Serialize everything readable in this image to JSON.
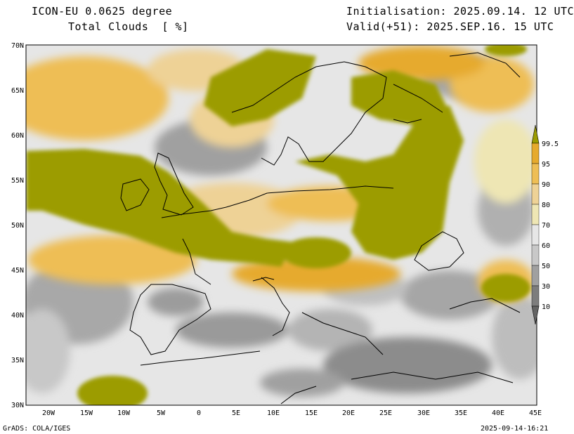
{
  "header": {
    "model": "ICON-EU 0.0625 degree",
    "variable": "Total Clouds",
    "unit": "[ %]",
    "init": "Initialisation: 2025.09.14. 12 UTC",
    "valid": "Valid(+51): 2025.SEP.16. 15 UTC"
  },
  "map": {
    "lat_labels": [
      "70N",
      "65N",
      "60N",
      "55N",
      "50N",
      "45N",
      "40N",
      "35N",
      "30N"
    ],
    "lon_labels": [
      "20W",
      "15W",
      "10W",
      "5W",
      "0",
      "5E",
      "10E",
      "15E",
      "20E",
      "25E",
      "30E",
      "35E",
      "40E",
      "45E"
    ]
  },
  "legend": {
    "levels": [
      "99.5",
      "95",
      "90",
      "80",
      "70",
      "60",
      "50",
      "30",
      "10"
    ],
    "colors": [
      "#9c9c00",
      "#e6aa2d",
      "#eebe55",
      "#eed296",
      "#eee6b4",
      "#e6e6e6",
      "#c8c8c8",
      "#a0a0a0",
      "#7d7d7d",
      "#646464"
    ]
  },
  "footer": {
    "left": "GrADS: COLA/IGES",
    "right": "2025-09-14-16:21"
  }
}
